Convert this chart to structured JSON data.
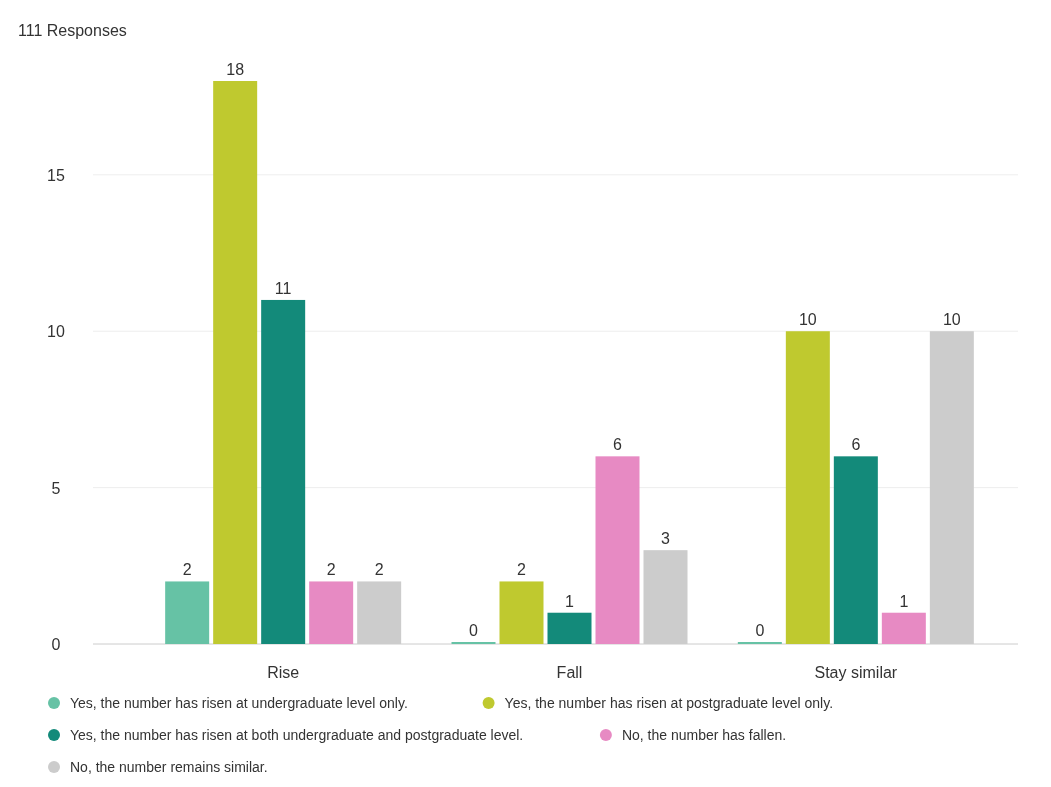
{
  "chart_data": {
    "type": "bar",
    "title": "111 Responses",
    "categories": [
      "Rise",
      "Fall",
      "Stay similar"
    ],
    "series": [
      {
        "name": "Yes, the number has risen at undergraduate level only.",
        "color": "#66c2a5",
        "values": [
          2,
          0,
          0
        ]
      },
      {
        "name": "Yes, the number has risen at postgraduate level only.",
        "color": "#bfc92f",
        "values": [
          18,
          2,
          10
        ]
      },
      {
        "name": "Yes, the number has risen at both undergraduate and postgraduate level.",
        "color": "#138a7a",
        "values": [
          11,
          1,
          6
        ]
      },
      {
        "name": "No, the number has fallen.",
        "color": "#e78ac3",
        "values": [
          2,
          6,
          1
        ]
      },
      {
        "name": "No, the number remains similar.",
        "color": "#cccccc",
        "values": [
          2,
          3,
          10
        ]
      }
    ],
    "ylim": [
      0,
      18
    ],
    "yticks": [
      0,
      5,
      10,
      15
    ],
    "grid": "y",
    "legend": "bottom",
    "data_labels": true
  }
}
